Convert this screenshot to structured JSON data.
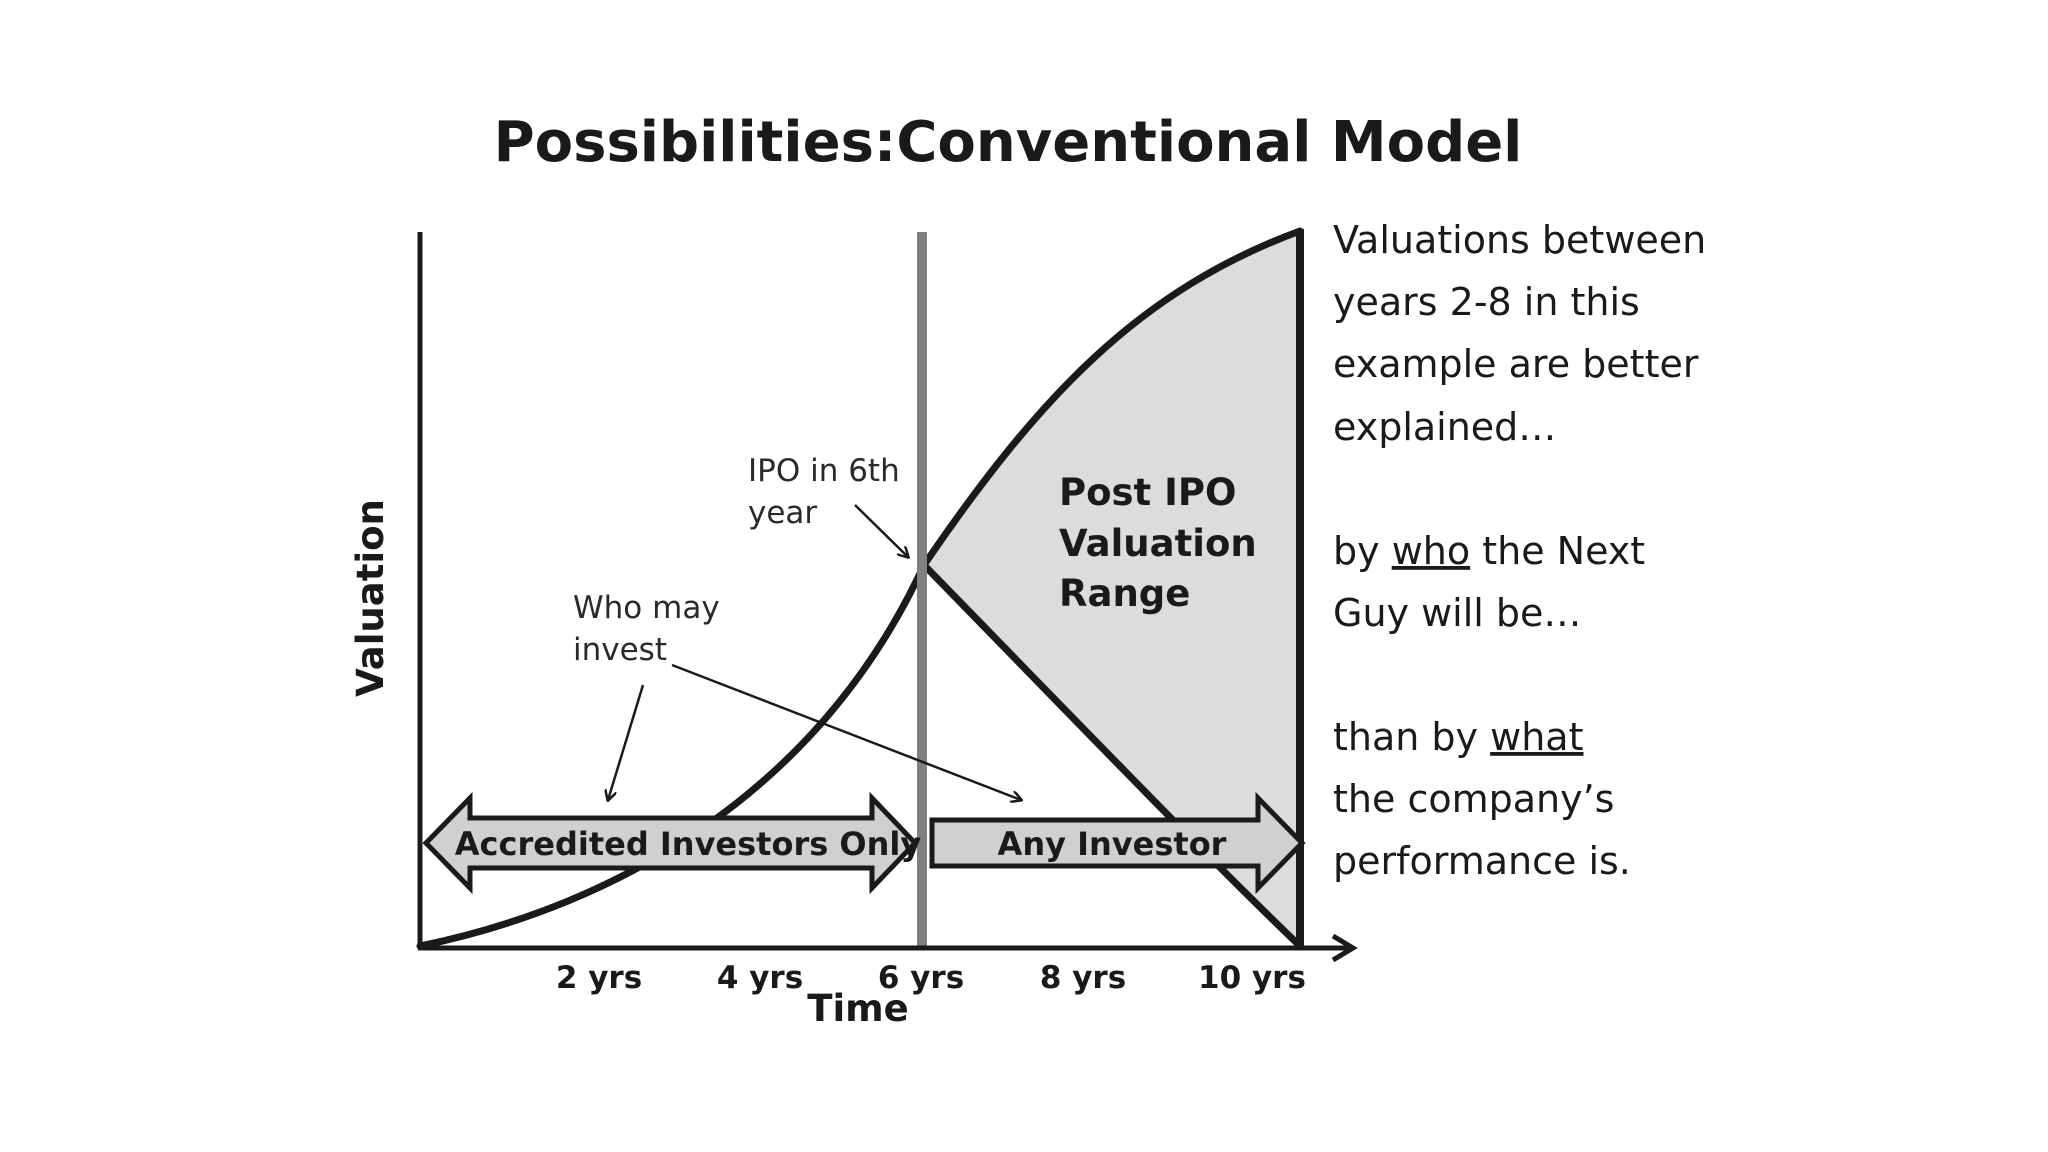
{
  "title": "Possibilities:Conventional Model",
  "y_axis_label": "Valuation",
  "x_axis_label": "Time",
  "x_ticks": [
    "2 yrs",
    "4 yrs",
    "6 yrs",
    "8 yrs",
    "10 yrs"
  ],
  "ipo_annotation": {
    "line1": "IPO in 6th",
    "line2": "year"
  },
  "who_invest_annotation": {
    "line1": "Who may",
    "line2": "invest"
  },
  "post_ipo_label": {
    "line1": "Post IPO",
    "line2": "Valuation",
    "line3": "Range"
  },
  "bands": {
    "accredited": "Accredited Investors Only",
    "any": "Any Investor"
  },
  "side_text": {
    "line1": "Valuations between",
    "line2": "years 2-8 in this",
    "line3": "example are better",
    "line4": "explained…",
    "line5_pre": "by ",
    "line5_u": "who",
    "line5_post": " the Next",
    "line6": "Guy will be…",
    "line7_pre": "than by ",
    "line7_u": "what",
    "line8": "the company’s",
    "line9": "performance is."
  },
  "colors": {
    "ink": "#1a1a1a",
    "divider": "#808080",
    "region_fill": "#dcdcdc",
    "band_fill": "#d0d0d0"
  }
}
